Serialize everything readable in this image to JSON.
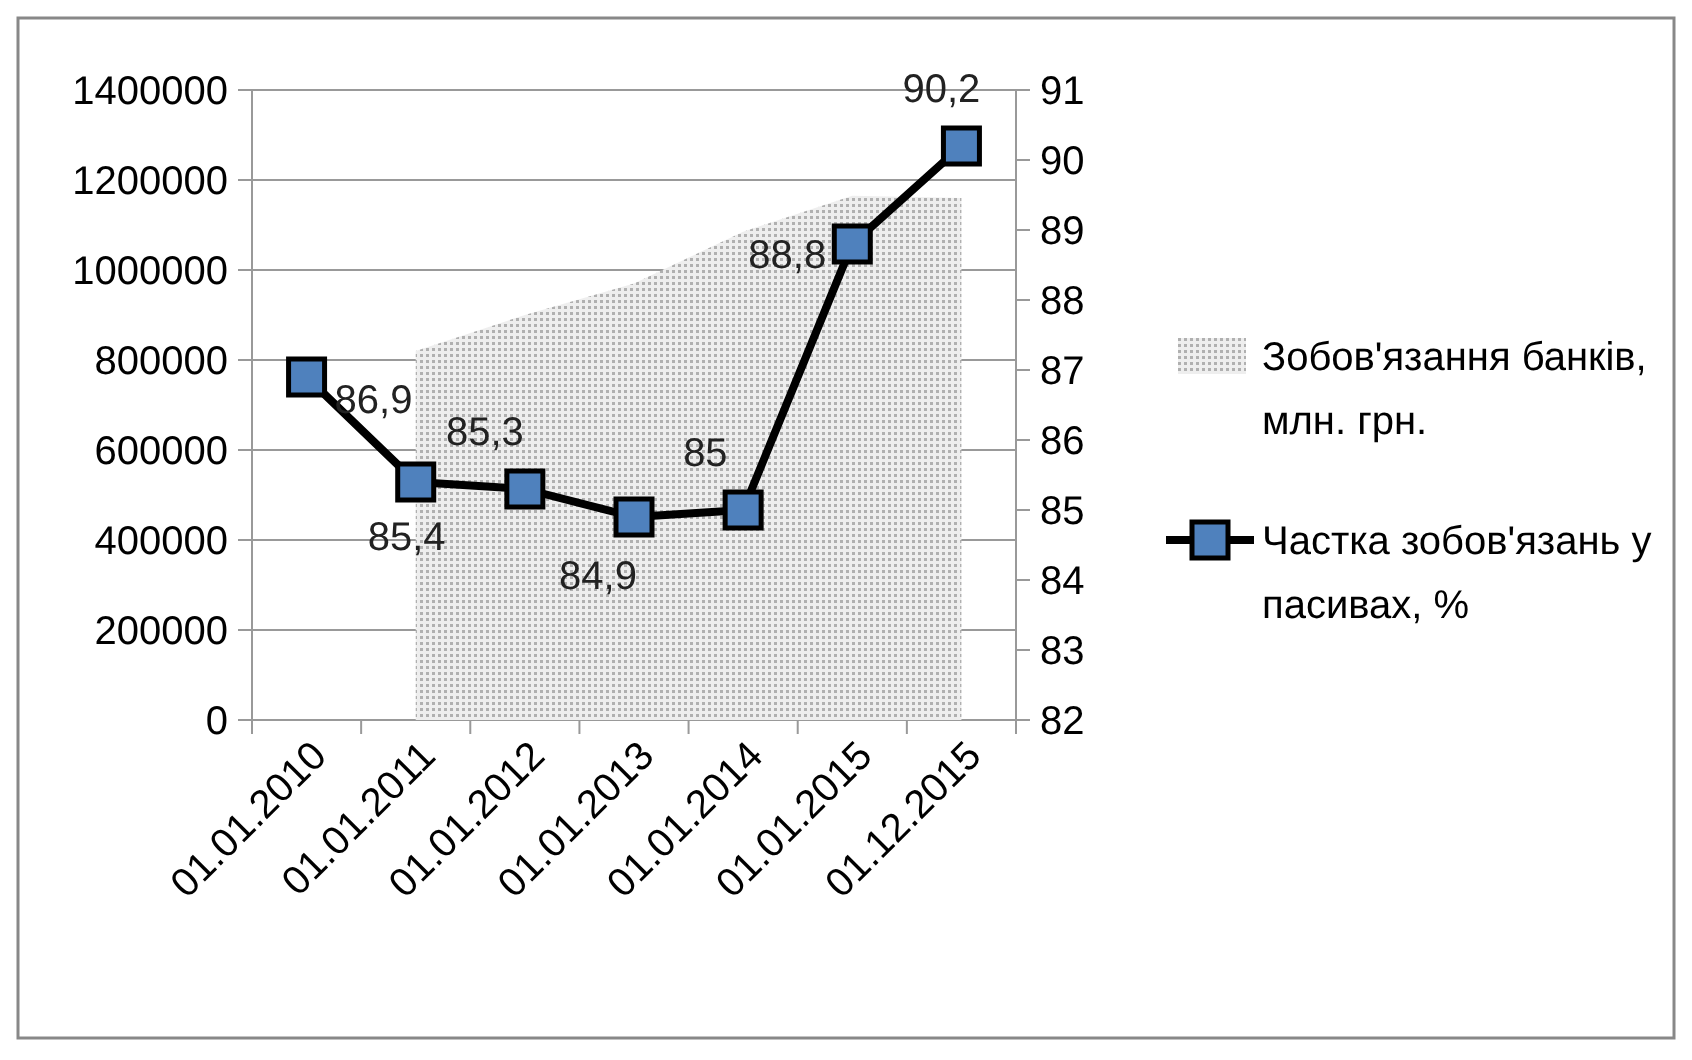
{
  "chart_data": {
    "type": "area",
    "categories": [
      "01.01.2010",
      "01.01.2011",
      "01.01.2012",
      "01.01.2013",
      "01.01.2014",
      "01.01.2015",
      "01.12.2015"
    ],
    "series": [
      {
        "name": "Зобов'язання банків, млн. грн.",
        "color": "#b0b0b0",
        "values": [
          null,
          820000,
          900000,
          970000,
          1085000,
          1165000,
          1160000
        ]
      },
      {
        "name": "Частка зобов'язань у пасивах, %",
        "type": "line",
        "axis": "y2",
        "color": "#000000",
        "marker": "square",
        "values": [
          86.9,
          85.4,
          85.3,
          84.9,
          85,
          88.8,
          90.2
        ],
        "value_labels": [
          "86,9",
          "85,4",
          "85,3",
          "84,9",
          "85",
          "88,8",
          "90,2"
        ]
      }
    ],
    "ylim": [
      0,
      1400000
    ],
    "yticks": [
      0,
      200000,
      400000,
      600000,
      800000,
      1000000,
      1200000,
      1400000
    ],
    "y2lim": [
      82,
      91
    ],
    "y2ticks": [
      82,
      83,
      84,
      85,
      86,
      87,
      88,
      89,
      90,
      91
    ],
    "grid": "y",
    "legend": "right"
  }
}
